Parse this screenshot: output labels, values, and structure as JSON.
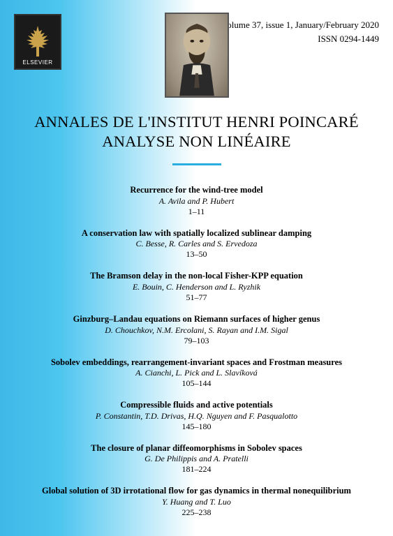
{
  "header": {
    "publisher_label": "ELSEVIER",
    "volume_line": "Volume 37, issue 1, January/February 2020",
    "issn_line": "ISSN 0294-1449"
  },
  "journal": {
    "title_line1": "ANNALES DE L'INSTITUT HENRI POINCARÉ",
    "title_line2": "ANALYSE NON LINÉAIRE"
  },
  "divider_color": "#28aee0",
  "articles": [
    {
      "title": "Recurrence for the wind-tree model",
      "authors": "A. Avila and P. Hubert",
      "pages": "1–11"
    },
    {
      "title": "A conservation law with spatially localized sublinear damping",
      "authors": "C. Besse, R. Carles and S. Ervedoza",
      "pages": "13–50"
    },
    {
      "title": "The Bramson delay in the non-local Fisher-KPP equation",
      "authors": "E. Bouin, C. Henderson and L. Ryzhik",
      "pages": "51–77"
    },
    {
      "title": "Ginzburg–Landau equations on Riemann surfaces of higher genus",
      "authors": "D. Chouchkov, N.M. Ercolani, S. Rayan and I.M. Sigal",
      "pages": "79–103"
    },
    {
      "title": "Sobolev embeddings, rearrangement-invariant spaces and Frostman measures",
      "authors": "A. Cianchi, L. Pick and L. Slavíková",
      "pages": "105–144"
    },
    {
      "title": "Compressible fluids and active potentials",
      "authors": "P. Constantin, T.D. Drivas, H.Q. Nguyen and F. Pasqualotto",
      "pages": "145–180"
    },
    {
      "title": "The closure of planar diffeomorphisms in Sobolev spaces",
      "authors": "G. De Philippis and A. Pratelli",
      "pages": "181–224"
    },
    {
      "title": "Global solution of 3D irrotational flow for gas dynamics in thermal nonequilibrium",
      "authors": "Y. Huang and T. Luo",
      "pages": "225–238"
    }
  ]
}
